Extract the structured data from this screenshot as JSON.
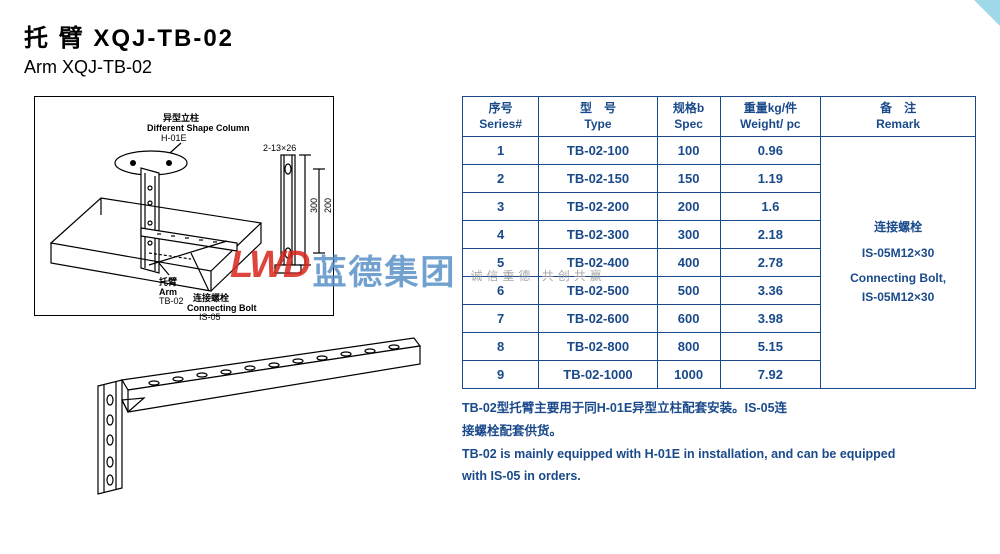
{
  "title": {
    "cn": "托 臂 XQJ-TB-02",
    "en": "Arm XQJ-TB-02"
  },
  "diagram_labels": {
    "top": {
      "column_cn": "异型立柱",
      "column_en": "Different Shape Column",
      "column_code": "H-01E",
      "arm_cn": "托臂",
      "arm_en": "Arm",
      "arm_code": "TB-02",
      "bolt_cn": "连接螺栓",
      "bolt_en": "Connecting Bolt",
      "bolt_code": "IS-05",
      "side_dim1": "2-13×26",
      "side_dim2": "300",
      "side_dim3": "200"
    }
  },
  "table": {
    "headers": {
      "series": {
        "cn": "序号",
        "en": "Series#"
      },
      "type": {
        "cn": "型　号",
        "en": "Type"
      },
      "spec": {
        "cn": "规格b",
        "en": "Spec"
      },
      "weight": {
        "cn": "重量kg/件",
        "en": "Weight/ pc"
      },
      "remark": {
        "cn": "备　注",
        "en": "Remark"
      }
    },
    "rows": [
      {
        "n": "1",
        "type": "TB-02-100",
        "spec": "100",
        "weight": "0.96"
      },
      {
        "n": "2",
        "type": "TB-02-150",
        "spec": "150",
        "weight": "1.19"
      },
      {
        "n": "3",
        "type": "TB-02-200",
        "spec": "200",
        "weight": "1.6"
      },
      {
        "n": "4",
        "type": "TB-02-300",
        "spec": "300",
        "weight": "2.18"
      },
      {
        "n": "5",
        "type": "TB-02-400",
        "spec": "400",
        "weight": "2.78"
      },
      {
        "n": "6",
        "type": "TB-02-500",
        "spec": "500",
        "weight": "3.36"
      },
      {
        "n": "7",
        "type": "TB-02-600",
        "spec": "600",
        "weight": "3.98"
      },
      {
        "n": "8",
        "type": "TB-02-800",
        "spec": "800",
        "weight": "5.15"
      },
      {
        "n": "9",
        "type": "TB-02-1000",
        "spec": "1000",
        "weight": "7.92"
      }
    ],
    "remark": {
      "cn1": "连接螺栓",
      "code1": "IS-05M12×30",
      "en1": "Connecting Bolt,",
      "code2": "IS-05M12×30"
    }
  },
  "notes": {
    "cn1": "TB-02型托臂主要用于同H-01E异型立柱配套安装。IS-05连",
    "cn2": "接螺栓配套供货。",
    "en1": "TB-02 is mainly equipped with H-01E in installation, and can be equipped",
    "en2": "with IS-05 in orders."
  },
  "watermark": {
    "logo": "LWD",
    "cn": "蓝德集团",
    "sub": "诚信重德 共创共赢"
  },
  "colors": {
    "table_border": "#1a4a8a",
    "table_text": "#1a4a8a",
    "wm_red": "#d9261c",
    "wm_blue": "#5a91c8",
    "wm_grey": "#999999",
    "corner": "#9fd8e8"
  }
}
